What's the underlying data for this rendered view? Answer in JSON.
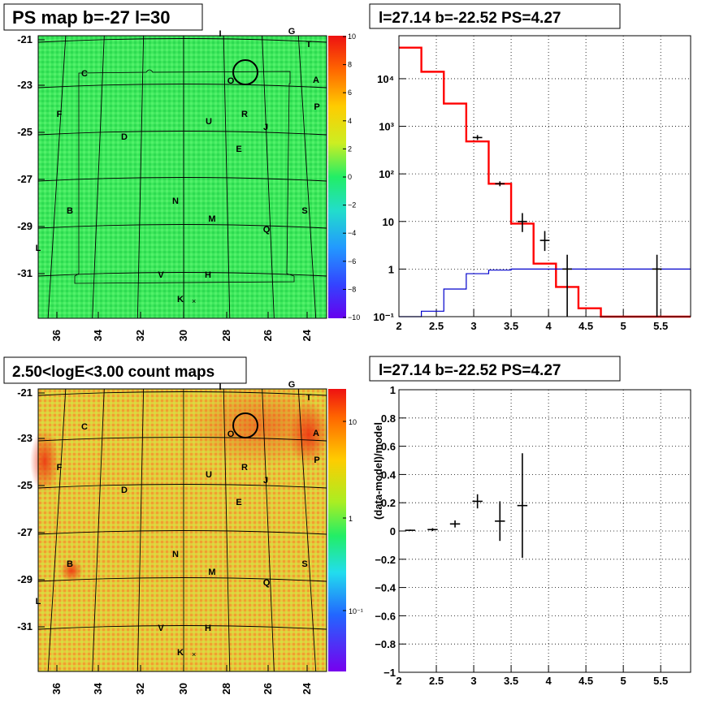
{
  "chart_data": [
    {
      "type": "heatmap",
      "title": "PS map b=-27 l=30",
      "x_ticks": [
        "36",
        "34",
        "32",
        "30",
        "28",
        "26",
        "24"
      ],
      "y_ticks": [
        "-21",
        "-23",
        "-25",
        "-27",
        "-29",
        "-31"
      ],
      "colorbar_ticks": [
        "10",
        "8",
        "6",
        "4",
        "2",
        "0",
        "−2",
        "−4",
        "−6",
        "−8",
        "−10"
      ],
      "zlim": [
        -10,
        10
      ],
      "colors": {
        "background": "#33ee66",
        "high": "#ee2222",
        "low": "#6600ee"
      },
      "source_labels": [
        "I",
        "G",
        "T",
        "C",
        "O",
        "A",
        "P",
        "F",
        "U",
        "R",
        "J",
        "D",
        "E",
        "N",
        "B",
        "S",
        "M",
        "Q",
        "L",
        "V",
        "H",
        "K"
      ]
    },
    {
      "type": "line",
      "title": "l=27.14 b=-22.52 PS=4.27",
      "x_ticks": [
        "2",
        "2.5",
        "3",
        "3.5",
        "4",
        "4.5",
        "5",
        "5.5"
      ],
      "xlim": [
        2,
        5.9
      ],
      "y_scale": "log",
      "y_ticks": [
        "10⁻¹",
        "1",
        "10",
        "10²",
        "10³",
        "10⁴"
      ],
      "ylim": [
        0.1,
        80000
      ],
      "grid": true,
      "series": [
        {
          "color": "#ff0000",
          "bins": [
            [
              2.0,
              2.3,
              45000
            ],
            [
              2.3,
              2.6,
              14000
            ],
            [
              2.6,
              2.9,
              3000
            ],
            [
              2.9,
              3.2,
              480
            ],
            [
              3.2,
              3.5,
              62
            ],
            [
              3.5,
              3.8,
              9
            ],
            [
              3.8,
              4.1,
              1.3
            ],
            [
              4.1,
              4.4,
              0.42
            ],
            [
              4.4,
              4.7,
              0.15
            ],
            [
              4.7,
              5.9,
              0.1
            ]
          ]
        },
        {
          "color": "#0000cc",
          "bins": [
            [
              2.0,
              2.3,
              0.1
            ],
            [
              2.3,
              2.6,
              0.13
            ],
            [
              2.6,
              2.9,
              0.38
            ],
            [
              2.9,
              3.2,
              0.8
            ],
            [
              3.2,
              3.5,
              0.95
            ],
            [
              3.5,
              5.9,
              1.0
            ]
          ]
        },
        {
          "color": "#000000",
          "points": [
            [
              3.05,
              580,
              0.15,
              0,
              0
            ],
            [
              3.35,
              62,
              0.15,
              0,
              0
            ],
            [
              3.65,
              10,
              0.15,
              6,
              15
            ],
            [
              3.95,
              4,
              0.15,
              2.4,
              6.3
            ],
            [
              4.25,
              1,
              0.15,
              0,
              2
            ],
            [
              5.45,
              1,
              0.15,
              0,
              2
            ]
          ]
        }
      ]
    },
    {
      "type": "heatmap",
      "title": "2.50<logE<3.00 count maps",
      "x_ticks": [
        "36",
        "34",
        "32",
        "30",
        "28",
        "26",
        "24"
      ],
      "y_ticks": [
        "-21",
        "-23",
        "-25",
        "-27",
        "-29",
        "-31"
      ],
      "colorbar_ticks": [
        "10",
        "1",
        "10⁻¹"
      ],
      "z_scale": "log",
      "colors": {
        "background": "#e8d040",
        "high": "#ee3311",
        "low": "#6600ee"
      },
      "source_labels": [
        "I",
        "G",
        "T",
        "C",
        "O",
        "A",
        "P",
        "F",
        "U",
        "R",
        "J",
        "D",
        "E",
        "N",
        "B",
        "S",
        "M",
        "Q",
        "L",
        "V",
        "H",
        "K"
      ]
    },
    {
      "type": "scatter",
      "title": "l=27.14 b=-22.52 PS=4.27",
      "ylabel": "(data-model)/model",
      "x_ticks": [
        "2",
        "2.5",
        "3",
        "3.5",
        "4",
        "4.5",
        "5",
        "5.5"
      ],
      "xlim": [
        2,
        5.9
      ],
      "y_ticks": [
        "1",
        "0.8",
        "0.6",
        "0.4",
        "0.2",
        "0",
        "−0.2",
        "−0.4",
        "−0.6",
        "−0.8",
        "−1"
      ],
      "ylim": [
        -1,
        1
      ],
      "grid": true,
      "points": [
        [
          2.15,
          0.005,
          0.15,
          0.005
        ],
        [
          2.45,
          0.01,
          0.15,
          0.01
        ],
        [
          2.75,
          0.05,
          0.15,
          0.025
        ],
        [
          3.05,
          0.21,
          0.15,
          0.05
        ],
        [
          3.35,
          0.07,
          0.15,
          0.14
        ],
        [
          3.65,
          0.18,
          0.15,
          0.37
        ]
      ]
    }
  ]
}
